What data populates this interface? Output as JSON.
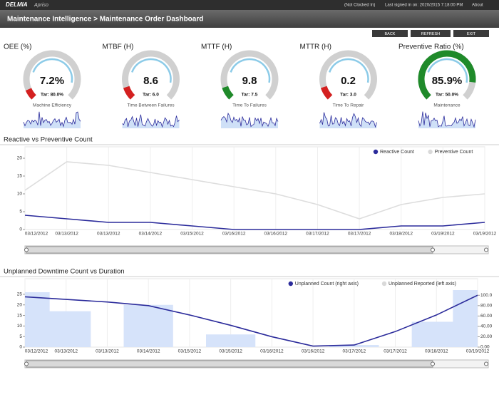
{
  "header": {
    "brand": "DELMIA",
    "product": "Apriso",
    "clock_status": "(Not Clocked In)",
    "last_signed": "Last signed in on: 2020/2015 7:18:00 PM",
    "about": "About"
  },
  "title": "Maintenance Intelligence > Maintenance Order Dashboard",
  "buttons": [
    "BACK",
    "REFRESH",
    "EXIT"
  ],
  "gauges": [
    {
      "title": "OEE (%)",
      "value": "7.2%",
      "target": "Tar: 80.0%",
      "caption": "Machine Efficiency",
      "color": "#d42020"
    },
    {
      "title": "MTBF (H)",
      "value": "8.6",
      "target": "Tar: 6.0",
      "caption": "Time Between Failures",
      "color": "#d42020"
    },
    {
      "title": "MTTF (H)",
      "value": "9.8",
      "target": "Tar: 7.5",
      "caption": "Time To Failures",
      "color": "#1f8a2a"
    },
    {
      "title": "MTTR (H)",
      "value": "0.2",
      "target": "Tar: 3.0",
      "caption": "Time To Repair",
      "color": "#d42020"
    },
    {
      "title": "Preventive Ratio (%)",
      "value": "85.9%",
      "target": "Tar: 50.0%",
      "caption": "Maintenance",
      "color": "#1f8a2a"
    }
  ],
  "chart_data": [
    {
      "type": "line",
      "title": "Reactive vs Preventive Count",
      "categories": [
        "03/12/2012",
        "03/13/2012",
        "03/13/2012",
        "03/14/2012",
        "03/15/2012",
        "03/16/2012",
        "03/16/2012",
        "03/17/2012",
        "03/17/2012",
        "03/18/2012",
        "03/19/2012",
        "03/19/2012"
      ],
      "series": [
        {
          "name": "Reactive Count",
          "color": "#2b2b9b",
          "values": [
            4,
            3,
            2,
            2,
            1,
            0,
            0,
            0,
            0,
            1,
            1,
            2
          ]
        },
        {
          "name": "Preventive Count",
          "color": "#dddddd",
          "values": [
            11,
            19,
            18,
            16,
            14,
            12,
            10,
            7,
            3,
            7,
            9,
            10
          ]
        }
      ],
      "ylim": [
        0,
        20
      ],
      "yticks": [
        0,
        5,
        10,
        15,
        20
      ],
      "legend": "top-right"
    },
    {
      "type": "bar-line",
      "title": "Unplanned Downtime Count vs Duration",
      "categories": [
        "03/12/2012",
        "03/13/2012",
        "03/13/2012",
        "03/14/2012",
        "03/15/2012",
        "03/15/2012",
        "03/16/2012",
        "03/16/2012",
        "03/17/2012",
        "03/17/2012",
        "03/18/2012",
        "03/19/2012"
      ],
      "series": [
        {
          "name": "Unplanned Count (right axis)",
          "color": "#2b2b9b",
          "axis": "y2",
          "values": [
            97,
            92,
            87,
            80,
            62,
            42,
            20,
            2,
            4,
            30,
            62,
            100
          ]
        },
        {
          "name": "Unplanned Reported (left axis)",
          "color": "#d6e3fa",
          "values": [
            26,
            17,
            null,
            20,
            null,
            6,
            null,
            null,
            1,
            null,
            12,
            27
          ]
        }
      ],
      "ylim": [
        0,
        27
      ],
      "yticks": [
        0,
        5,
        10,
        15,
        20,
        25
      ],
      "y2lim": [
        0,
        110
      ],
      "y2ticks": [
        {
          "value": 0,
          "label": "0.00"
        },
        {
          "value": 20,
          "label": "20.00"
        },
        {
          "value": 40,
          "label": "40.00"
        },
        {
          "value": 60,
          "label": "60.00"
        },
        {
          "value": 80,
          "label": "80.00"
        },
        {
          "value": 100,
          "label": "100.0"
        }
      ],
      "legend": "top-right"
    }
  ]
}
